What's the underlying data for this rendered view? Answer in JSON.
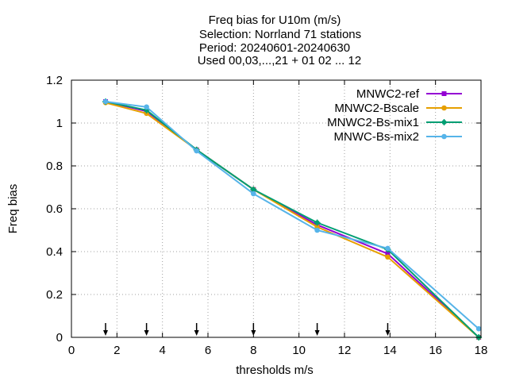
{
  "chart_data": {
    "type": "line",
    "title_lines": [
      "Freq bias  for U10m (m/s)",
      "Selection: Norrland     71 stations",
      "Period: 20240601-20240630",
      "Used 00,03,...,21 + 01 02 ... 12"
    ],
    "xlabel": "thresholds m/s",
    "ylabel": "Freq bias",
    "xlim": [
      0,
      18
    ],
    "ylim": [
      0,
      1.2
    ],
    "xticks": [
      0,
      2,
      4,
      6,
      8,
      10,
      12,
      14,
      16,
      18
    ],
    "yticks": [
      0,
      0.2,
      0.4,
      0.6,
      0.8,
      1,
      1.2
    ],
    "ytick_labels": [
      "0",
      "0.2",
      "0.4",
      "0.6",
      "0.8",
      "1",
      "1.2"
    ],
    "grid": true,
    "legend_position": "top-right",
    "threshold_arrows": [
      1.5,
      3.3,
      5.5,
      8.0,
      10.8,
      13.9
    ],
    "series": [
      {
        "name": "MNWC2-ref",
        "color": "#9400d3",
        "marker": "square",
        "x": [
          1.5,
          3.3,
          5.5,
          8.0,
          10.8,
          13.9,
          17.9
        ],
        "y": [
          1.1,
          1.055,
          0.875,
          0.69,
          0.525,
          0.39,
          0.0
        ]
      },
      {
        "name": "MNWC2-Bscale",
        "color": "#e69f00",
        "marker": "circle",
        "x": [
          1.5,
          3.3,
          5.5,
          8.0,
          10.8,
          13.9,
          17.9
        ],
        "y": [
          1.095,
          1.045,
          0.875,
          0.69,
          0.515,
          0.375,
          0.0
        ]
      },
      {
        "name": "MNWC2-Bs-mix1",
        "color": "#009e73",
        "marker": "star",
        "x": [
          1.5,
          3.3,
          5.5,
          8.0,
          10.8,
          13.9,
          17.9
        ],
        "y": [
          1.1,
          1.06,
          0.875,
          0.69,
          0.535,
          0.41,
          0.0
        ]
      },
      {
        "name": "MNWC-Bs-mix2",
        "color": "#56b4e9",
        "marker": "circle",
        "x": [
          1.5,
          3.3,
          5.5,
          8.0,
          10.8,
          13.9,
          17.9
        ],
        "y": [
          1.1,
          1.075,
          0.87,
          0.67,
          0.5,
          0.415,
          0.04
        ]
      }
    ]
  }
}
